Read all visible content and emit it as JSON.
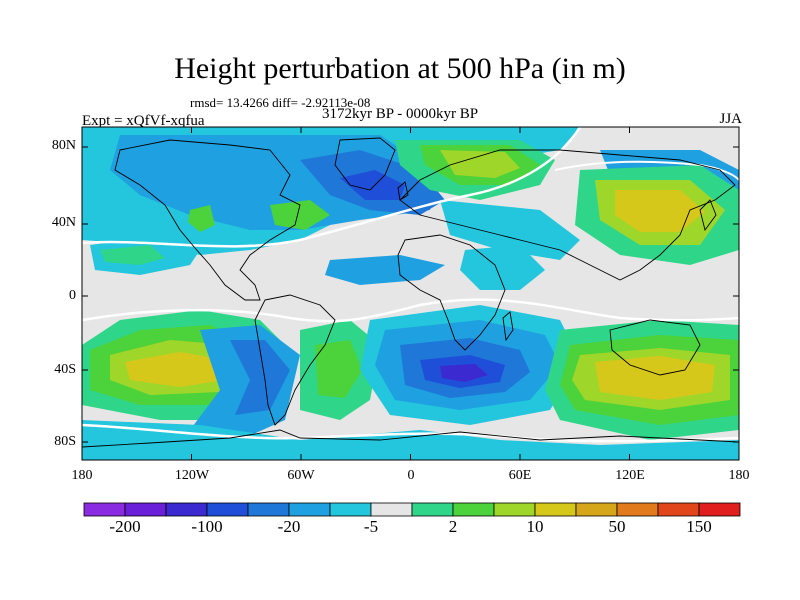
{
  "header": {
    "title": "Height perturbation at 500 hPa (in m)",
    "stats": "rmsd= 13.4266 diff= -2.92113e-08",
    "experiment": "Expt = xQfVf-xqfua",
    "period": "3172kyr BP - 0000kyr BP",
    "season": "JJA"
  },
  "axes": {
    "lat_labels": [
      "80N",
      "40N",
      "0",
      "40S",
      "80S"
    ],
    "lon_labels": [
      "180",
      "120W",
      "60W",
      "0",
      "60E",
      "120E",
      "180"
    ]
  },
  "colorbar": {
    "labels": [
      "-200",
      "-100",
      "-20",
      "-5",
      "2",
      "10",
      "50",
      "150"
    ],
    "colors": [
      "#8a2be2",
      "#6a1fd8",
      "#3a2ad0",
      "#1f4fd8",
      "#1f77d8",
      "#1fa0e0",
      "#23c6dc",
      "#e6e6e6",
      "#2fd68a",
      "#4cd23a",
      "#9fd62a",
      "#d6c81a",
      "#d6a61a",
      "#e07a1a",
      "#e0461a",
      "#e01e1e"
    ]
  },
  "map_colors": {
    "neutral": "#e6e6e6",
    "coast": "#000000",
    "contour": "#ffffff"
  }
}
